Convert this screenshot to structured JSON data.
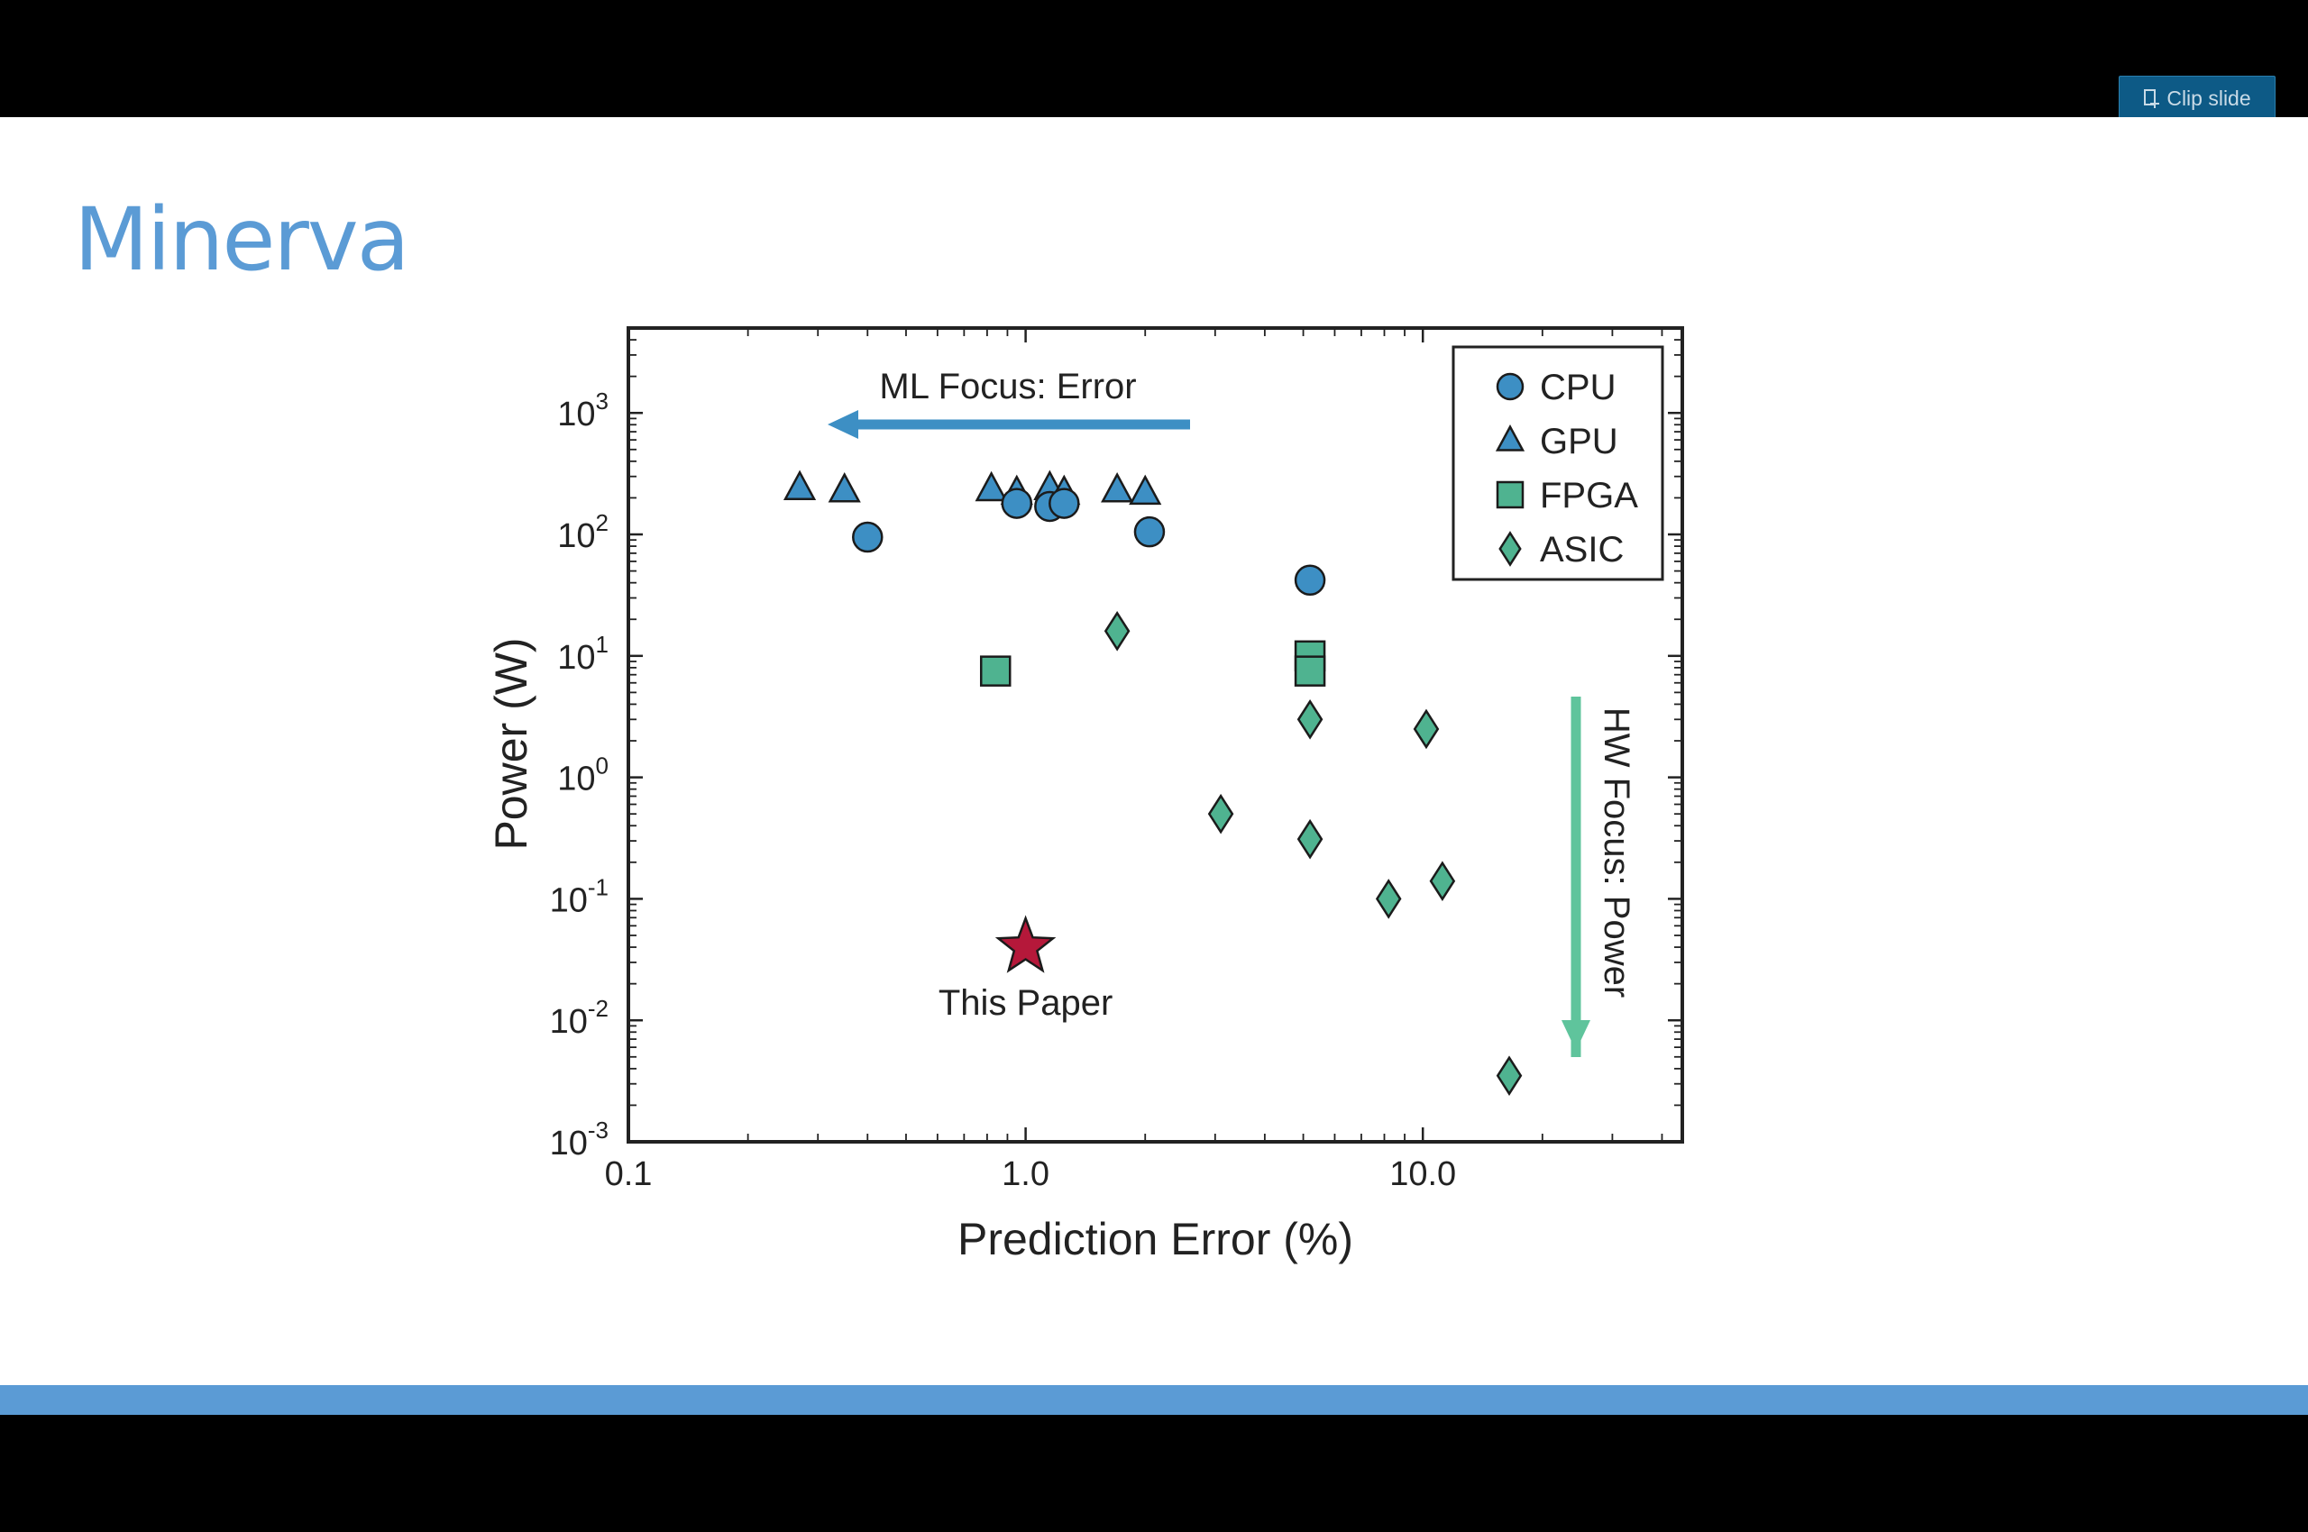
{
  "toolbar": {
    "clip_label": "Clip slide"
  },
  "slide": {
    "title": "Minerva"
  },
  "colors": {
    "cpu": "#3d8fc4",
    "gpu": "#3d8fc4",
    "fpga": "#4fb390",
    "asic": "#4fb390",
    "star": "#b5183a",
    "accent": "#5b9bd5",
    "ml_arrow": "#3d8fc4",
    "hw_arrow": "#5fc49c"
  },
  "chart_data": {
    "type": "scatter",
    "xlabel": "Prediction Error (%)",
    "ylabel": "Power (W)",
    "xscale": "log",
    "yscale": "log",
    "xlim": [
      0.1,
      45
    ],
    "ylim": [
      0.001,
      5000
    ],
    "xticks": [
      {
        "value": 0.1,
        "label": "0.1"
      },
      {
        "value": 1.0,
        "label": "1.0"
      },
      {
        "value": 10.0,
        "label": "10.0"
      }
    ],
    "yticks": [
      {
        "value": 0.001,
        "base": "10",
        "exp": "-3"
      },
      {
        "value": 0.01,
        "base": "10",
        "exp": "-2"
      },
      {
        "value": 0.1,
        "base": "10",
        "exp": "-1"
      },
      {
        "value": 1,
        "base": "10",
        "exp": "0"
      },
      {
        "value": 10,
        "base": "10",
        "exp": "1"
      },
      {
        "value": 100,
        "base": "10",
        "exp": "2"
      },
      {
        "value": 1000,
        "base": "10",
        "exp": "3"
      }
    ],
    "legend_position": "top-right",
    "series": [
      {
        "name": "CPU",
        "marker": "circle",
        "points": [
          [
            0.4,
            95
          ],
          [
            0.95,
            180
          ],
          [
            1.15,
            170
          ],
          [
            1.25,
            180
          ],
          [
            2.05,
            105
          ],
          [
            5.2,
            42
          ]
        ]
      },
      {
        "name": "GPU",
        "marker": "triangle",
        "points": [
          [
            0.27,
            240
          ],
          [
            0.35,
            230
          ],
          [
            0.82,
            235
          ],
          [
            0.95,
            220
          ],
          [
            1.15,
            240
          ],
          [
            1.25,
            220
          ],
          [
            1.7,
            230
          ],
          [
            2.0,
            220
          ]
        ]
      },
      {
        "name": "FPGA",
        "marker": "square",
        "points": [
          [
            0.84,
            7.5
          ],
          [
            5.2,
            10
          ],
          [
            5.2,
            7.5
          ]
        ]
      },
      {
        "name": "ASIC",
        "marker": "diamond",
        "points": [
          [
            1.7,
            16
          ],
          [
            3.1,
            0.5
          ],
          [
            5.2,
            3.0
          ],
          [
            5.2,
            0.31
          ],
          [
            8.2,
            0.1
          ],
          [
            10.2,
            2.5
          ],
          [
            11.2,
            0.14
          ],
          [
            16.5,
            0.0035
          ]
        ]
      }
    ],
    "highlight": {
      "label": "This Paper",
      "marker": "star",
      "point": [
        1.0,
        0.04
      ]
    },
    "annotations": {
      "ml_focus": "ML Focus: Error",
      "hw_focus": "HW Focus: Power"
    }
  }
}
